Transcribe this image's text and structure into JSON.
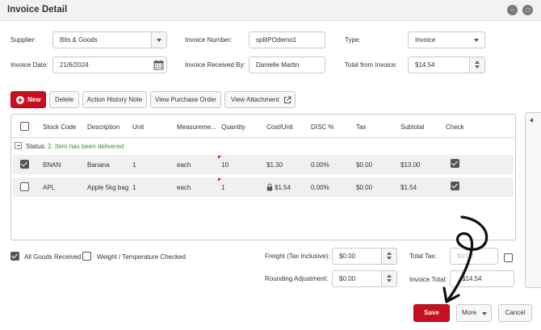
{
  "window": {
    "title": "Invoice Detail"
  },
  "form": {
    "supplier_label": "Supplier:",
    "supplier_value": "Bits & Goods",
    "invoice_number_label": "Invoice Number:",
    "invoice_number_value": "splitPOdemo1",
    "type_label": "Type:",
    "type_value": "Invoice",
    "invoice_date_label": "Invoice Date:",
    "invoice_date_value": "21/6/2024",
    "received_by_label": "Invoice Received By:",
    "received_by_value": "Danielle Martin",
    "total_from_invoice_label": "Total from Invoice:",
    "total_from_invoice_value": "$14.54"
  },
  "toolbar": {
    "new_label": "New",
    "delete_label": "Delete",
    "action_history_label": "Action History Note",
    "view_po_label": "View Purchase Order",
    "view_attachment_label": "View Attachment"
  },
  "table": {
    "columns": [
      "Stock Code",
      "Description",
      "Unit",
      "Measureme...",
      "Quantity",
      "Cost/Unit",
      "DISC %",
      "Tax",
      "Subtotal",
      "Check"
    ],
    "status_group": {
      "prefix": "Status:",
      "text": "2. Item has been delivered"
    },
    "rows": [
      {
        "stock_code": "BNAN",
        "description": "Banana",
        "unit": "1",
        "measurement": "each",
        "quantity": "10",
        "cost_unit": "$1.30",
        "disc": "0.00%",
        "tax": "$0.00",
        "subtotal": "$13.00",
        "checked": true,
        "selected": true
      },
      {
        "stock_code": "APL",
        "description": "Apple 5kg bag",
        "unit": "1",
        "measurement": "each",
        "quantity": "1",
        "cost_unit": "$1.54",
        "disc": "0.00%",
        "tax": "$0.00",
        "subtotal": "$1.54",
        "checked": true,
        "selected": false
      }
    ]
  },
  "footer": {
    "all_goods_received_label": "All Goods Received",
    "weight_temp_label": "Weight / Temperature Checked",
    "freight_label": "Freight (Tax Inclusive):",
    "freight_value": "$0.00",
    "rounding_label": "Rounding Adjustment:",
    "rounding_value": "$0.00",
    "total_tax_label": "Total Tax:",
    "total_tax_value": "$0.00",
    "invoice_total_label": "Invoice Total:",
    "invoice_total_value": "$14.54"
  },
  "actions": {
    "save_label": "Save",
    "more_label": "More",
    "cancel_label": "Cancel"
  },
  "colors": {
    "accent": "#c7101e",
    "status_text": "#3c8f3c",
    "annotation": "#111111"
  },
  "icons": [
    "minimize-icon",
    "maximize-icon",
    "calendar-icon",
    "plus-icon",
    "external-link-icon",
    "lock-icon",
    "collapse-icon",
    "chevron-left-icon"
  ]
}
